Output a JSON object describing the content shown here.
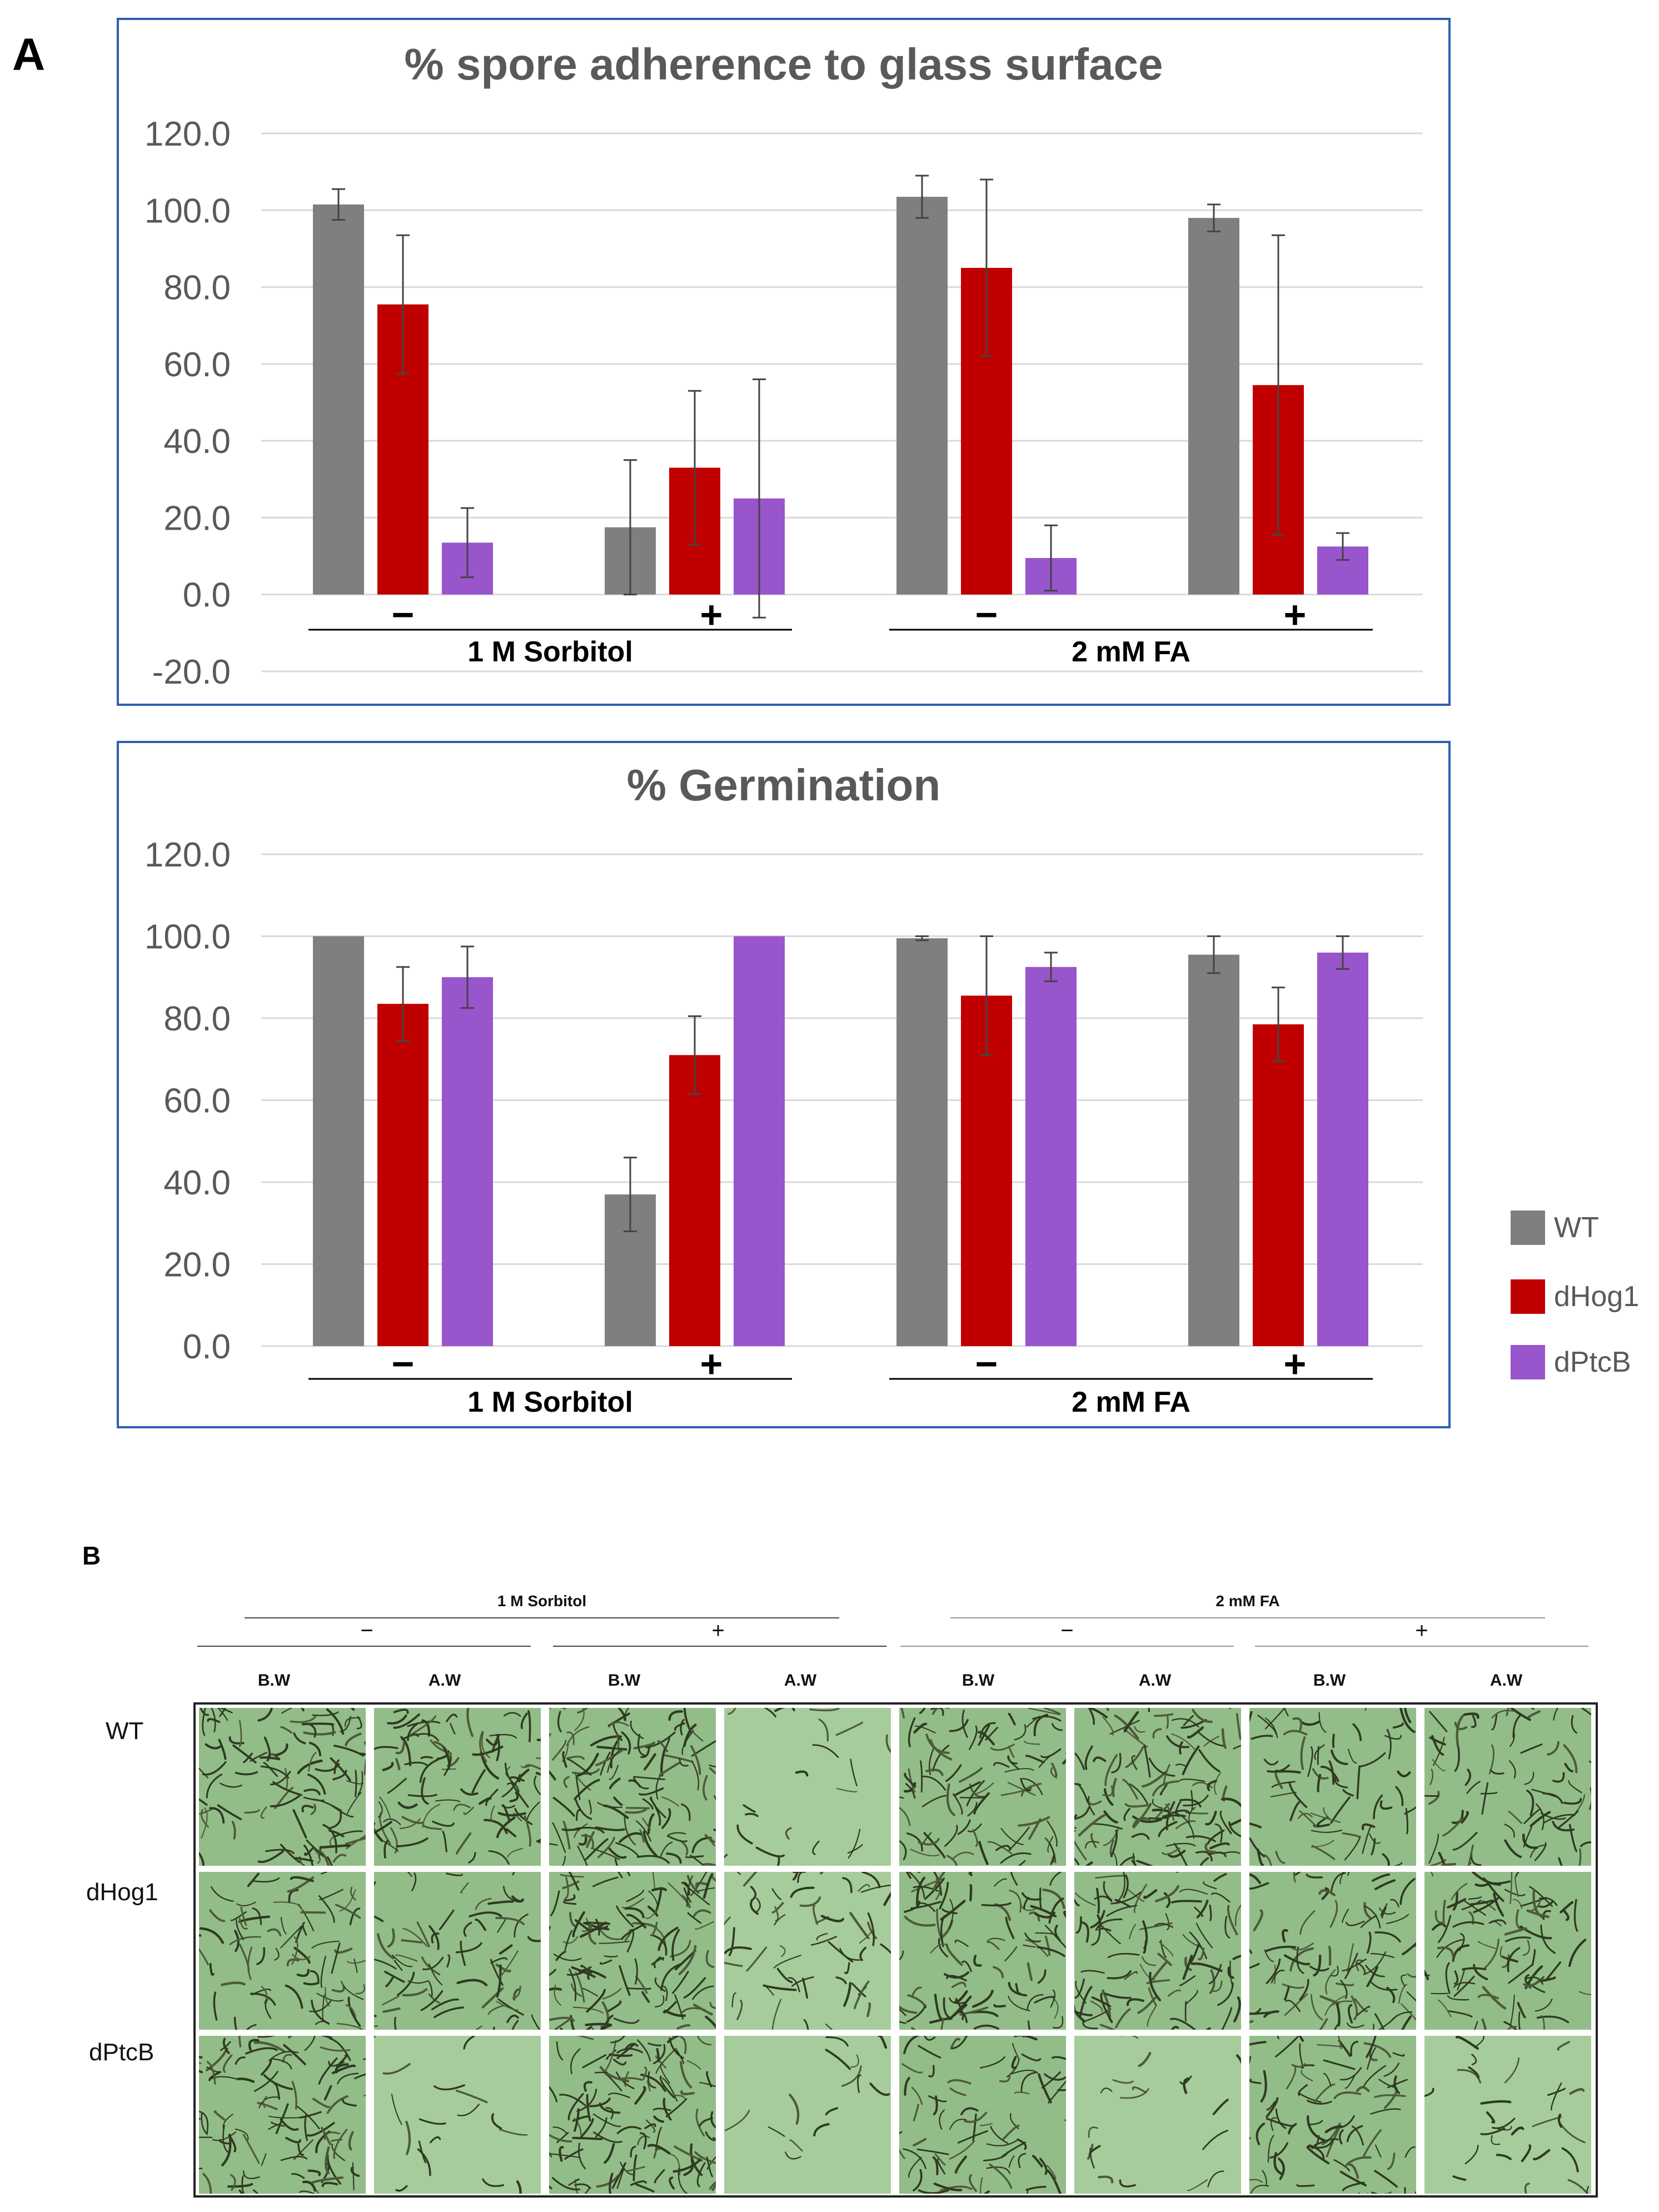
{
  "panel_a_label": "A",
  "panel_b_label": "B",
  "colors": {
    "WT": "#7f7f7f",
    "dHog1": "#c00000",
    "dPtcB": "#9955cc",
    "frame": "#2f5fb0",
    "grid": "#d9d9d9",
    "axis_text": "#595959"
  },
  "legend": [
    {
      "name": "WT",
      "color": "#7f7f7f"
    },
    {
      "name": "dHog1",
      "color": "#c00000"
    },
    {
      "name": "dPtcB",
      "color": "#9955cc"
    }
  ],
  "chart_data": [
    {
      "type": "bar",
      "title": "% spore adherence to glass surface",
      "xlabel": "",
      "ylabel": "",
      "ylim": [
        -20,
        120
      ],
      "yticks": [
        "120.0",
        "100.0",
        "80.0",
        "60.0",
        "40.0",
        "20.0",
        "0.0",
        "-20.0"
      ],
      "grid": true,
      "groups": [
        {
          "treatment": "1 M Sorbitol",
          "sign": "−"
        },
        {
          "treatment": "1 M Sorbitol",
          "sign": "+"
        },
        {
          "treatment": "2 mM FA",
          "sign": "−"
        },
        {
          "treatment": "2 mM FA",
          "sign": "+"
        }
      ],
      "treatment_labels": [
        "1 M Sorbitol",
        "2 mM FA"
      ],
      "signs": [
        "−",
        "+",
        "−",
        "+"
      ],
      "series": [
        {
          "name": "WT",
          "values": [
            101.5,
            17.5,
            103.5,
            98.0
          ],
          "errors": [
            4.0,
            17.5,
            5.5,
            3.5
          ]
        },
        {
          "name": "dHog1",
          "values": [
            75.5,
            33.0,
            85.0,
            54.5
          ],
          "errors": [
            18.0,
            20.0,
            23.0,
            39.0
          ]
        },
        {
          "name": "dPtcB",
          "values": [
            13.5,
            25.0,
            9.5,
            12.5
          ],
          "errors": [
            9.0,
            31.0,
            8.5,
            3.5
          ]
        }
      ]
    },
    {
      "type": "bar",
      "title": "% Germination",
      "xlabel": "",
      "ylabel": "",
      "ylim": [
        0,
        120
      ],
      "yticks": [
        "120.0",
        "100.0",
        "80.0",
        "60.0",
        "40.0",
        "20.0",
        "0.0"
      ],
      "grid": true,
      "groups": [
        {
          "treatment": "1 M Sorbitol",
          "sign": "−"
        },
        {
          "treatment": "1 M Sorbitol",
          "sign": "+"
        },
        {
          "treatment": "2 mM FA",
          "sign": "−"
        },
        {
          "treatment": "2 mM FA",
          "sign": "+"
        }
      ],
      "treatment_labels": [
        "1 M Sorbitol",
        "2 mM FA"
      ],
      "signs": [
        "−",
        "+",
        "−",
        "+"
      ],
      "series": [
        {
          "name": "WT",
          "values": [
            100.0,
            37.0,
            99.5,
            95.5
          ],
          "errors": [
            0.0,
            9.0,
            0.5,
            4.5
          ]
        },
        {
          "name": "dHog1",
          "values": [
            83.5,
            71.0,
            85.5,
            78.5
          ],
          "errors": [
            9.0,
            9.5,
            14.5,
            9.0
          ]
        },
        {
          "name": "dPtcB",
          "values": [
            90.0,
            100.0,
            92.5,
            96.0
          ],
          "errors": [
            7.5,
            0.0,
            3.5,
            4.0
          ]
        }
      ]
    }
  ],
  "micrographs": {
    "treatments": [
      "1 M Sorbitol",
      "2 mM FA"
    ],
    "signs": [
      "−",
      "+",
      "−",
      "+"
    ],
    "columns": [
      "B.W",
      "A.W",
      "B.W",
      "A.W",
      "B.W",
      "A.W",
      "B.W",
      "A.W"
    ],
    "rows": [
      "WT",
      "dHog1",
      "dPtcB"
    ],
    "density": [
      [
        0.85,
        0.8,
        1.0,
        0.12,
        0.75,
        1.0,
        0.55,
        0.6
      ],
      [
        0.6,
        0.55,
        1.0,
        0.45,
        0.8,
        0.8,
        0.75,
        0.75
      ],
      [
        0.85,
        0.08,
        1.0,
        0.05,
        0.6,
        0.1,
        0.7,
        0.2
      ]
    ]
  }
}
